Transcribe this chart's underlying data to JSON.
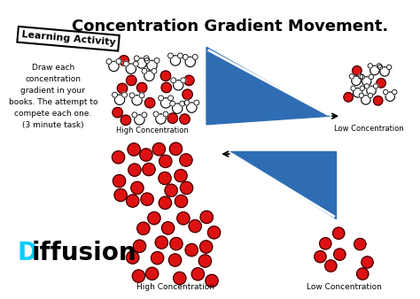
{
  "title": "Concentration Gradient Movement.",
  "title_fontsize": 13,
  "title_fontweight": "bold",
  "bg_color": "#ffffff",
  "triangle_color": "#2E6DB4",
  "red_color": "#DD1111",
  "white_color": "#ffffff",
  "black_color": "#000000",
  "cyan_color": "#00CCFF",
  "learning_box_text": "Learning Activity",
  "body_text": "Draw each\nconcentration\ngradient in your\nbooks. The attempt to\ncompete each one.\n(3 minute task)",
  "diffusion_D": "D",
  "diffusion_rest": "iffusion",
  "high_conc_label": "High Concentration",
  "low_conc_label": "Low Concentration",
  "fig_w": 4.74,
  "fig_h": 3.38,
  "dpi": 100,
  "xlim": [
    0,
    474
  ],
  "ylim": [
    0,
    338
  ]
}
